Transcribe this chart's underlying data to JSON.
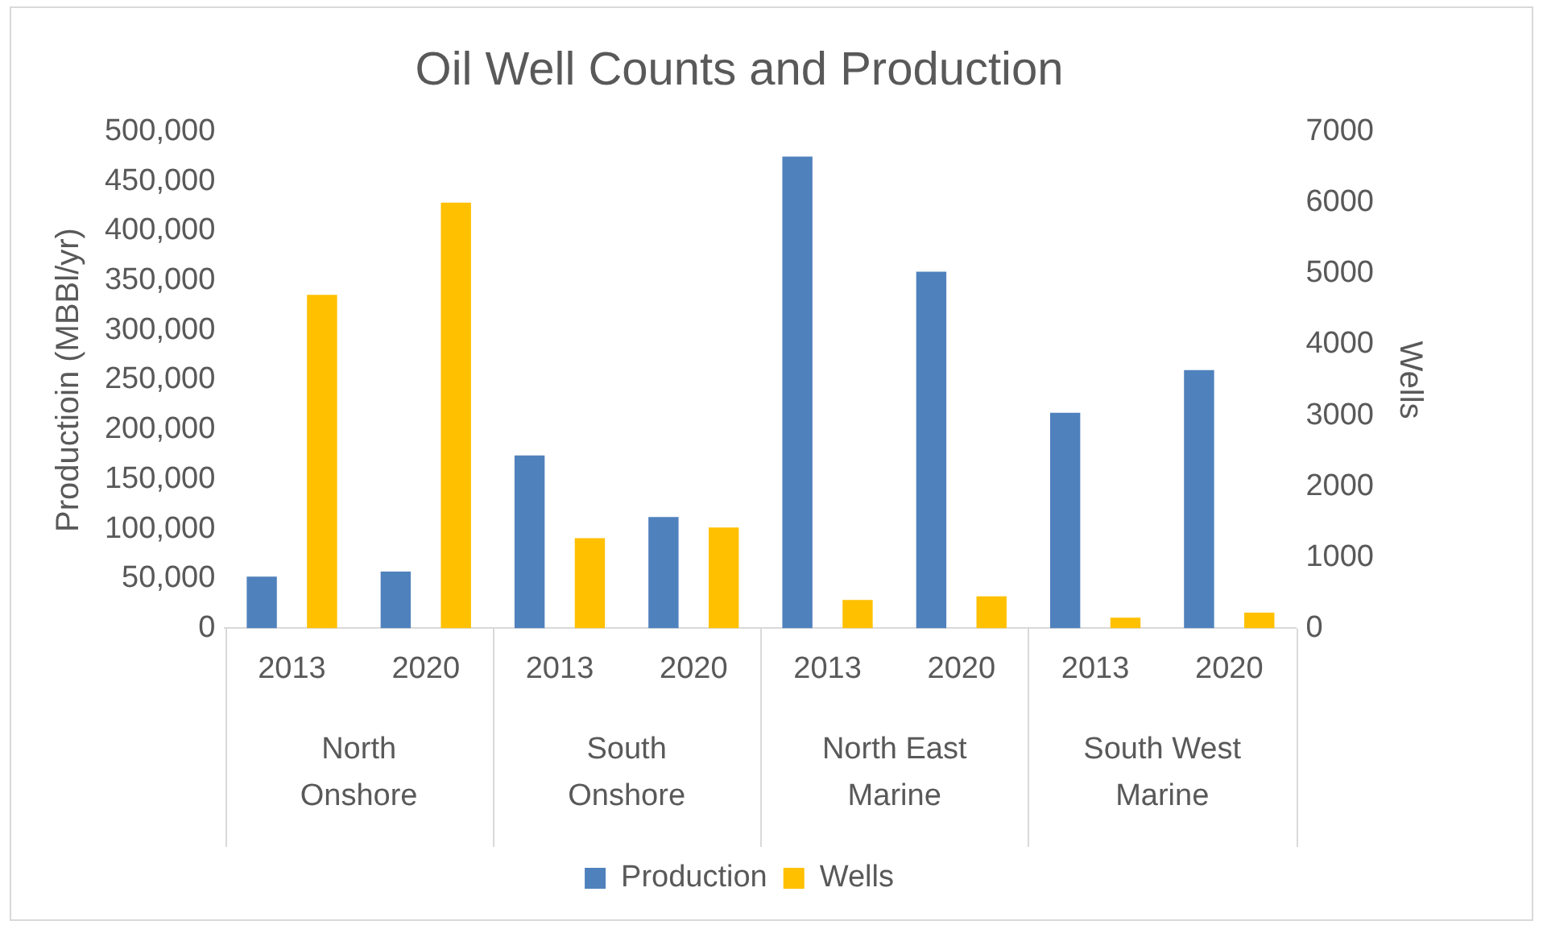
{
  "chart_data": {
    "type": "bar",
    "title": "Oil Well Counts and Production",
    "ylabel": "Productioin (MBBl/yr)",
    "y2label": "Wells",
    "categories": [
      "2013",
      "2020",
      "2013",
      "2020",
      "2013",
      "2020",
      "2013",
      "2020"
    ],
    "annotations": [
      "North Onshore",
      "South Onshore",
      "North East Marine",
      "South West Marine"
    ],
    "series": [
      {
        "name": "Production",
        "color": "#4f81bd",
        "values": [
          52000,
          57000,
          174000,
          112000,
          475000,
          359000,
          217000,
          260000
        ]
      },
      {
        "name": "Wells",
        "color": "#ffc000",
        "axis": "y2",
        "values": [
          4700,
          6000,
          1270,
          1420,
          400,
          450,
          150,
          220
        ]
      }
    ],
    "ylim": [
      0,
      500000
    ],
    "yticks": [
      0,
      {
        "value": 50000,
        "label": "50,000"
      },
      {
        "value": 100000,
        "label": "100,000"
      },
      {
        "value": 150000,
        "label": "150,000"
      },
      {
        "value": 200000,
        "label": "200,000"
      },
      {
        "value": 250000,
        "label": "250,000"
      },
      {
        "value": 300000,
        "label": "300,000"
      },
      {
        "value": 350000,
        "label": "350,000"
      },
      {
        "value": 400000,
        "label": "400,000"
      },
      {
        "value": 450000,
        "label": "450,000"
      },
      {
        "value": 500000,
        "label": "500,000"
      }
    ],
    "y2lim": [
      0,
      7000
    ],
    "y2ticks": [
      0,
      1000,
      2000,
      3000,
      4000,
      5000,
      6000,
      7000
    ],
    "grid": false,
    "legend": "bottom"
  }
}
